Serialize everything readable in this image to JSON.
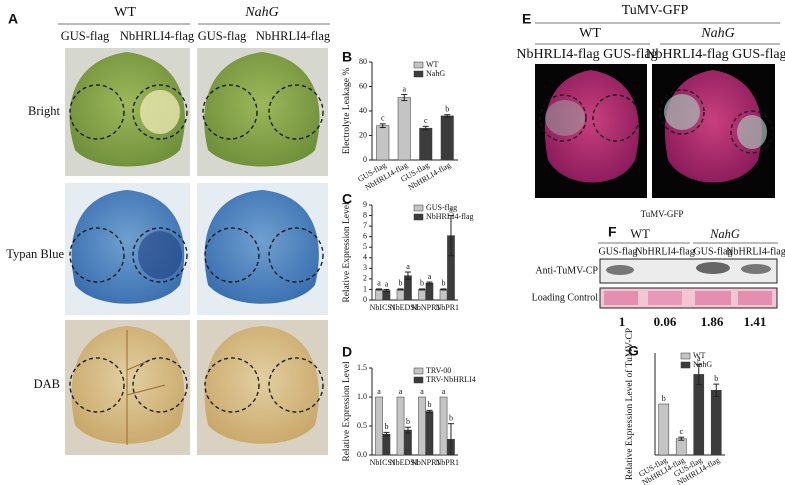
{
  "panel_a": {
    "label": "A",
    "wt": "WT",
    "nahg": "NahG",
    "lanes": [
      "GUS-flag",
      "NbHRLI4-flag",
      "GUS-flag",
      "NbHRLI4-flag"
    ],
    "rows": [
      "Bright",
      "Typan Blue",
      "DAB"
    ]
  },
  "panel_e": {
    "label": "E",
    "title": "TuMV-GFP",
    "wt": "WT",
    "nahg": "NahG",
    "wt_lanes": "NbHRLI4-flag GUS-flag",
    "nahg_lanes": "NbHRLI4-flag GUS-flag"
  },
  "panel_f": {
    "label": "F",
    "title": "TuMV-GFP",
    "wt": "WT",
    "nahg": "NahG",
    "lanes": [
      "GUS-flag",
      "NbHRLI4-flag",
      "GUS-flag",
      "NbHRLI4-flag"
    ],
    "rows": [
      "Anti-TuMV-CP",
      "Loading Control"
    ],
    "quantities": [
      "1",
      "0.06",
      "1.86",
      "1.41"
    ]
  },
  "chart_data": [
    {
      "type": "bar",
      "label": "B",
      "ylabel": "Electrolyte Leakage %",
      "categories": [
        "GUS-flag",
        "NbHRLI4-flag",
        "GUS-flag",
        "NbHRLI4-flag"
      ],
      "grouped": false,
      "legend": "upper right",
      "series": [
        {
          "name": "WT",
          "color": "#c4c4c4",
          "values": [
            28,
            51,
            null,
            null
          ],
          "errors": [
            1.5,
            2.5,
            null,
            null
          ],
          "letters": [
            "c",
            "a",
            null,
            null
          ]
        },
        {
          "name": "NahG",
          "color": "#3c3c3c",
          "values": [
            null,
            null,
            26,
            36
          ],
          "errors": [
            null,
            null,
            1.5,
            1
          ],
          "letters": [
            null,
            null,
            "c",
            "b"
          ]
        }
      ],
      "ylim": [
        0,
        80
      ],
      "yticks": [
        0,
        20,
        40,
        60,
        80
      ]
    },
    {
      "type": "bar",
      "label": "C",
      "ylabel": "Relative Expression Level",
      "categories": [
        "NbICS1",
        "NbEDS1",
        "NbNPR1",
        "NbPR1"
      ],
      "grouped": true,
      "legend": "upper right",
      "series": [
        {
          "name": "GUS-flag",
          "color": "#c4c4c4",
          "values": [
            1,
            1,
            1,
            1
          ],
          "errors": [
            0.05,
            0.05,
            0.05,
            0.05
          ],
          "letters": [
            "a",
            "b",
            "b",
            "b"
          ]
        },
        {
          "name": "NbHRLI4-flag",
          "color": "#3c3c3c",
          "values": [
            0.9,
            2.3,
            1.6,
            6.1
          ],
          "errors": [
            0.1,
            0.35,
            0.1,
            1.9
          ],
          "letters": [
            "a",
            "a",
            "a",
            "a"
          ]
        }
      ],
      "ylim": [
        0,
        9
      ],
      "yticks": [
        0,
        1,
        2,
        3,
        4,
        5,
        6,
        7,
        8,
        9
      ]
    },
    {
      "type": "bar",
      "label": "D",
      "ylabel": "Relative Expression Level",
      "categories": [
        "NbICS1",
        "NbEDS1",
        "NbNPR1",
        "NbPR1"
      ],
      "grouped": true,
      "legend": "upper right",
      "series": [
        {
          "name": "TRV-00",
          "color": "#c4c4c4",
          "values": [
            1,
            1,
            1,
            1
          ],
          "errors": [
            null,
            null,
            null,
            null
          ],
          "letters": [
            "a",
            "a",
            "a",
            "a"
          ]
        },
        {
          "name": "TRV-NbHRLI4",
          "color": "#3c3c3c",
          "values": [
            0.36,
            0.43,
            0.75,
            0.27
          ],
          "errors": [
            0.03,
            0.05,
            0.02,
            0.27
          ],
          "letters": [
            "b",
            "b",
            "b",
            "b"
          ]
        }
      ],
      "ylim": [
        0,
        1.5
      ],
      "yticks": [
        {
          "value": 0,
          "label": "0.0"
        },
        {
          "value": 0.5,
          "label": "0.5"
        },
        {
          "value": 1,
          "label": "1.0"
        },
        {
          "value": 1.5,
          "label": "1.5"
        }
      ]
    },
    {
      "type": "bar",
      "label": "G",
      "ylabel": "Relative Expression Level of TuMV-CP",
      "categories": [
        "GUS-flag",
        "NbHRLI4-flag",
        "GUS-flag",
        "NbHRLI4-flag"
      ],
      "grouped": false,
      "legend": "upper right",
      "series": [
        {
          "name": "WT",
          "color": "#c4c4c4",
          "values": [
            1,
            0.32,
            null,
            null
          ],
          "errors": [
            null,
            0.03,
            null,
            null
          ],
          "letters": [
            "b",
            "c",
            null,
            null
          ]
        },
        {
          "name": "NahG",
          "color": "#3c3c3c",
          "values": [
            null,
            null,
            1.58,
            1.27
          ],
          "errors": [
            null,
            null,
            0.2,
            0.12
          ],
          "letters": [
            null,
            null,
            "a",
            "b"
          ]
        }
      ],
      "ylim": [
        0,
        2
      ]
    }
  ]
}
